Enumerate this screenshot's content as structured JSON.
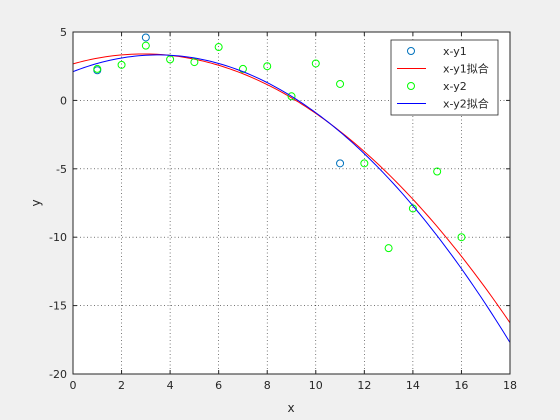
{
  "chart_data": {
    "type": "scatter",
    "title": "",
    "xlabel": "x",
    "ylabel": "y",
    "xlim": [
      0,
      18
    ],
    "ylim": [
      -20,
      5
    ],
    "xticks": [
      0,
      2,
      4,
      6,
      8,
      10,
      12,
      14,
      16,
      18
    ],
    "yticks": [
      5,
      0,
      -5,
      -10,
      -15,
      -20
    ],
    "grid": true,
    "legend_position": "top-right",
    "series": [
      {
        "name": "x-y1",
        "kind": "scatter",
        "marker": "circle",
        "color": "#0072bd",
        "x": [
          1,
          3,
          11
        ],
        "y": [
          2.2,
          4.6,
          -4.6
        ]
      },
      {
        "name": "x-y1拟合",
        "kind": "line",
        "color": "#ff0000",
        "fit": "quadratic",
        "coefficients": [
          -0.0862,
          0.5,
          2.67
        ],
        "x_range": [
          0,
          18
        ]
      },
      {
        "name": "x-y2",
        "kind": "scatter",
        "marker": "circle",
        "color": "#00ff00",
        "x": [
          1,
          2,
          3,
          4,
          5,
          6,
          7,
          8,
          9,
          10,
          11,
          12,
          13,
          14,
          15,
          16
        ],
        "y": [
          2.3,
          2.6,
          4.0,
          3.0,
          2.8,
          3.9,
          2.3,
          2.5,
          0.3,
          2.7,
          1.2,
          -4.6,
          -10.8,
          -7.9,
          -5.2,
          -10.0
        ]
      },
      {
        "name": "x-y2拟合",
        "kind": "line",
        "color": "#0000ff",
        "fit": "quadratic",
        "coefficients": [
          -0.1,
          0.7,
          2.1
        ],
        "x_range": [
          0,
          18
        ]
      }
    ]
  }
}
